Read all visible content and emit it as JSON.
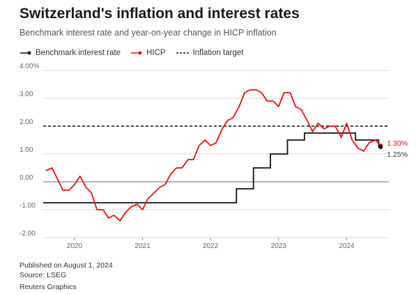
{
  "title": "Switzerland's inflation and interest rates",
  "subtitle": "Benchmark interest rate and year-on-year change in HICP inflation",
  "legend": {
    "rate": "Benchmark interest rate",
    "hicp": "HICP",
    "target": "Inflation target"
  },
  "footer": {
    "published": "Published on August 1, 2024",
    "source": "Source: LSEG",
    "credit": "Reuters Graphics"
  },
  "colors": {
    "rate": "#111111",
    "hicp": "#e3120b",
    "target": "#111111",
    "zero_line": "#888888",
    "grid": "#d9d9d9"
  },
  "chart_data": {
    "type": "line",
    "ylim": [
      -2.0,
      4.0
    ],
    "yticks": [
      -2.0,
      -1.0,
      0.0,
      1.0,
      2.0,
      3.0,
      4.0
    ],
    "ytick_labels": [
      "-2.00",
      "-1.00",
      "0.00",
      "1.00",
      "2.00",
      "3.00",
      "4.00%"
    ],
    "xlim": [
      2019.54,
      2024.62
    ],
    "xticks": [
      2020,
      2021,
      2022,
      2023,
      2024
    ],
    "xtick_labels": [
      "2020",
      "2021",
      "2022",
      "2023",
      "2024"
    ],
    "series": [
      {
        "name": "HICP",
        "x": [
          2019.58,
          2019.67,
          2019.75,
          2019.83,
          2019.92,
          2020.0,
          2020.08,
          2020.17,
          2020.25,
          2020.33,
          2020.42,
          2020.5,
          2020.58,
          2020.67,
          2020.75,
          2020.83,
          2020.92,
          2021.0,
          2021.08,
          2021.17,
          2021.25,
          2021.33,
          2021.42,
          2021.5,
          2021.58,
          2021.67,
          2021.75,
          2021.83,
          2021.92,
          2022.0,
          2022.08,
          2022.17,
          2022.25,
          2022.33,
          2022.42,
          2022.5,
          2022.58,
          2022.67,
          2022.75,
          2022.83,
          2022.92,
          2023.0,
          2023.08,
          2023.17,
          2023.25,
          2023.33,
          2023.42,
          2023.5,
          2023.58,
          2023.67,
          2023.75,
          2023.83,
          2023.92,
          2024.0,
          2024.08,
          2024.17,
          2024.25,
          2024.33,
          2024.42,
          2024.5
        ],
        "y": [
          0.4,
          0.5,
          0.1,
          -0.3,
          -0.3,
          -0.1,
          0.2,
          -0.2,
          -0.4,
          -1.0,
          -1.0,
          -1.3,
          -1.2,
          -1.4,
          -1.1,
          -0.9,
          -0.8,
          -1.0,
          -0.6,
          -0.4,
          -0.2,
          -0.1,
          0.3,
          0.5,
          0.5,
          0.8,
          0.8,
          1.3,
          1.5,
          1.3,
          1.4,
          1.9,
          2.2,
          2.3,
          2.7,
          3.2,
          3.3,
          3.3,
          3.2,
          2.9,
          2.9,
          2.7,
          3.2,
          3.2,
          2.7,
          2.6,
          2.2,
          1.8,
          2.1,
          1.9,
          2.0,
          2.0,
          1.6,
          2.1,
          1.5,
          1.2,
          1.1,
          1.4,
          1.5,
          1.3
        ]
      },
      {
        "name": "Benchmark interest rate",
        "x": [
          2019.54,
          2022.38,
          2022.38,
          2022.63,
          2022.63,
          2022.88,
          2022.88,
          2023.13,
          2023.13,
          2023.38,
          2023.38,
          2023.88,
          2023.88,
          2024.13,
          2024.13,
          2024.38,
          2024.38,
          2024.47,
          2024.47,
          2024.5
        ],
        "y": [
          -0.75,
          -0.75,
          -0.25,
          -0.25,
          0.5,
          0.5,
          1.0,
          1.0,
          1.5,
          1.5,
          1.75,
          1.75,
          1.75,
          1.75,
          1.5,
          1.5,
          1.5,
          1.5,
          1.25,
          1.25
        ]
      },
      {
        "name": "Inflation target",
        "value": 2.0
      }
    ],
    "end_labels": {
      "hicp": "1.30%",
      "rate": "1.25%"
    }
  }
}
